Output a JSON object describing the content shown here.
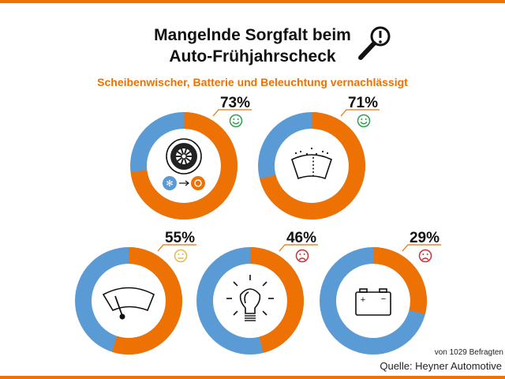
{
  "header": {
    "title_line1": "Mangelnde Sorgfalt beim",
    "title_line2": "Auto-Frühjahrscheck",
    "title_icon": "magnifier-exclamation-icon",
    "subtitle": "Scheibenwischer, Batterie und Beleuchtung vernachlässigt"
  },
  "footer": {
    "sample": "von 1029 Befragten",
    "source": "Quelle: Heyner Automotive"
  },
  "colors": {
    "accent": "#ee7203",
    "rest": "#5b9bd5",
    "happy": "#2e9e4f",
    "neutral": "#e8b84a",
    "sad": "#c8323a"
  },
  "chart_data": {
    "type": "pie",
    "variant": "donut",
    "series": [
      {
        "label": "73%",
        "value": 73,
        "icon": "tire-seasonal-change-icon",
        "mood": "happy"
      },
      {
        "label": "71%",
        "value": 71,
        "icon": "windshield-washer-icon",
        "mood": "happy"
      },
      {
        "label": "55%",
        "value": 55,
        "icon": "windshield-wiper-icon",
        "mood": "neutral"
      },
      {
        "label": "46%",
        "value": 46,
        "icon": "light-bulb-icon",
        "mood": "sad"
      },
      {
        "label": "29%",
        "value": 29,
        "icon": "car-battery-icon",
        "mood": "sad"
      }
    ]
  }
}
